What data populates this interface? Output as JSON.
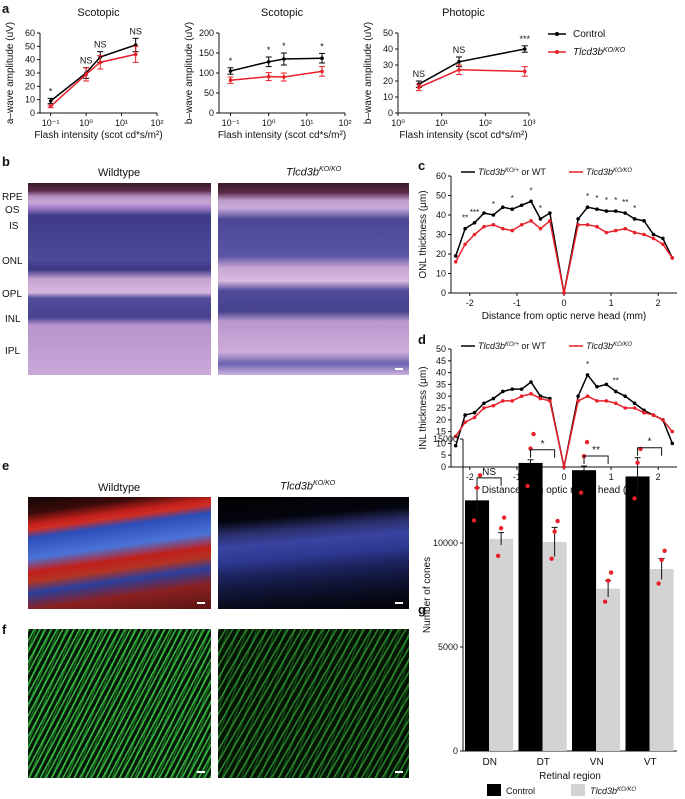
{
  "panels": {
    "a": "a",
    "b": "b",
    "c": "c",
    "d": "d",
    "e": "e",
    "f": "f",
    "g": "g"
  },
  "legend_a": {
    "control": "Control",
    "ko_main": "Tlcd3b",
    "ko_sup": "KO/KO"
  },
  "micro_labels": {
    "wildtype_b": "Wildtype",
    "ko_b_main": "Tlcd3b",
    "ko_b_sup": "KO/KO",
    "wildtype_e": "Wildtype",
    "ko_e_main": "Tlcd3b",
    "ko_e_sup": "KO/KO",
    "layers": [
      "RPE",
      "OS",
      "IS",
      "ONL",
      "OPL",
      "INL",
      "IPL"
    ]
  },
  "colors": {
    "control": "#000000",
    "ko": "#e8202a",
    "ko_bar": "#d3d3d3",
    "dot": "#e8202a"
  },
  "chart_data": [
    {
      "id": "a1",
      "type": "line",
      "title": "Scotopic",
      "xlabel": "Flash intensity (scot cd*s/m²)",
      "ylabel": "a–wave amplitude (uV)",
      "xscale": "log",
      "xlim": [
        0.05,
        100
      ],
      "ylim": [
        0,
        60
      ],
      "yticks": [
        0,
        10,
        20,
        30,
        40,
        50,
        60
      ],
      "xticks": [
        "10⁻¹",
        "10⁰",
        "10¹",
        "10²"
      ],
      "x": [
        0.1,
        1,
        2.5,
        25
      ],
      "series": [
        {
          "name": "Control",
          "values": [
            9,
            30,
            42,
            51
          ],
          "err": [
            2,
            4,
            4,
            5
          ]
        },
        {
          "name": "Tlcd3bKO/KO",
          "values": [
            5,
            29,
            38,
            44
          ],
          "err": [
            1,
            5,
            5,
            6
          ]
        }
      ],
      "annotations": [
        "*",
        "NS",
        "NS",
        "NS"
      ]
    },
    {
      "id": "a2",
      "type": "line",
      "title": "Scotopic",
      "xlabel": "Flash intensity (scot cd*s/m²)",
      "ylabel": "b–wave amplitude (uV)",
      "xscale": "log",
      "xlim": [
        0.05,
        100
      ],
      "ylim": [
        0,
        200
      ],
      "yticks": [
        0,
        50,
        100,
        150,
        200
      ],
      "xticks": [
        "10⁻¹",
        "10⁰",
        "10¹",
        "10²"
      ],
      "x": [
        0.1,
        1,
        2.5,
        25
      ],
      "series": [
        {
          "name": "Control",
          "values": [
            105,
            128,
            135,
            137
          ],
          "err": [
            8,
            12,
            15,
            12
          ]
        },
        {
          "name": "Tlcd3bKO/KO",
          "values": [
            82,
            91,
            90,
            104
          ],
          "err": [
            8,
            10,
            10,
            12
          ]
        }
      ],
      "annotations": [
        "*",
        "*",
        "*",
        "*"
      ]
    },
    {
      "id": "a3",
      "type": "line",
      "title": "Photopic",
      "xlabel": "Flash intensity (scot cd*s/m²)",
      "ylabel": "b–wave amplitude (uV)",
      "xscale": "log",
      "xlim": [
        1,
        1000
      ],
      "ylim": [
        0,
        50
      ],
      "yticks": [
        0,
        10,
        20,
        30,
        40,
        50
      ],
      "xticks": [
        "10⁰",
        "10¹",
        "10²",
        "10³"
      ],
      "x": [
        3,
        25,
        800
      ],
      "series": [
        {
          "name": "Control",
          "values": [
            18,
            32,
            40
          ],
          "err": [
            2,
            3,
            2
          ]
        },
        {
          "name": "Tlcd3bKO/KO",
          "values": [
            16,
            27,
            26
          ],
          "err": [
            2,
            3,
            3
          ]
        }
      ],
      "annotations": [
        "NS",
        "NS",
        "***"
      ]
    },
    {
      "id": "c",
      "type": "line",
      "xlabel": "Distance from optic nerve head (mm)",
      "ylabel": "ONL thickness (μm)",
      "xlim": [
        -2.4,
        2.4
      ],
      "ylim": [
        0,
        60
      ],
      "yticks": [
        0,
        10,
        20,
        30,
        40,
        50,
        60
      ],
      "xticks": [
        -2,
        -1,
        0,
        1,
        2
      ],
      "x": [
        -2.3,
        -2.1,
        -1.9,
        -1.7,
        -1.5,
        -1.3,
        -1.1,
        -0.9,
        -0.7,
        -0.5,
        -0.3,
        0,
        0.3,
        0.5,
        0.7,
        0.9,
        1.1,
        1.3,
        1.5,
        1.7,
        1.9,
        2.1,
        2.3
      ],
      "series": [
        {
          "name": "Tlcd3bKO/+ or WT",
          "values": [
            19,
            33,
            36,
            41,
            40,
            44,
            43,
            45,
            47,
            38,
            41,
            0,
            38,
            44,
            43,
            42,
            42,
            41,
            38,
            37,
            30,
            28,
            18
          ]
        },
        {
          "name": "Tlcd3bKO/KO",
          "values": [
            16,
            25,
            30,
            34,
            35,
            33,
            32,
            35,
            37,
            33,
            37,
            0,
            35,
            35,
            34,
            31,
            32,
            33,
            31,
            30,
            28,
            25,
            18
          ]
        }
      ],
      "legend": [
        "Tlcd3b",
        "KO/+",
        " or WT",
        "Tlcd3b",
        "KO/KO"
      ],
      "annotations": [
        "**",
        "***",
        "*",
        "*",
        "*",
        "*",
        "*",
        "*",
        "*",
        "*",
        "**",
        "*"
      ]
    },
    {
      "id": "d",
      "type": "line",
      "xlabel": "Distance from optic nerve head (mm)",
      "ylabel": "INL thickness (μm)",
      "xlim": [
        -2.4,
        2.4
      ],
      "ylim": [
        0,
        50
      ],
      "yticks": [
        0,
        5,
        10,
        15,
        20,
        25,
        30,
        35,
        40,
        45,
        50
      ],
      "xticks": [
        -2,
        -1,
        0,
        1,
        2
      ],
      "x": [
        -2.3,
        -2.1,
        -1.9,
        -1.7,
        -1.5,
        -1.3,
        -1.1,
        -0.9,
        -0.7,
        -0.5,
        -0.3,
        0,
        0.3,
        0.5,
        0.7,
        0.9,
        1.1,
        1.3,
        1.5,
        1.7,
        1.9,
        2.1,
        2.3
      ],
      "series": [
        {
          "name": "Tlcd3bKO/+ or WT",
          "values": [
            9,
            22,
            23,
            27,
            29,
            32,
            33,
            33,
            36,
            30,
            29,
            0,
            30,
            39,
            34,
            35,
            32,
            30,
            27,
            24,
            22,
            20,
            10
          ]
        },
        {
          "name": "Tlcd3bKO/KO",
          "values": [
            13,
            19,
            21,
            25,
            26,
            28,
            28,
            30,
            31,
            29,
            28,
            0,
            28,
            30,
            28,
            28,
            27,
            25,
            25,
            23,
            22,
            20,
            15
          ]
        }
      ],
      "legend": [
        "Tlcd3b",
        "KO/+",
        " or WT",
        "Tlcd3b",
        "KO/KO"
      ],
      "annotations": [
        "*",
        "**"
      ]
    },
    {
      "id": "g",
      "type": "bar",
      "xlabel": "Retinal region",
      "ylabel": "Number of cones",
      "ylim": [
        0,
        15000
      ],
      "yticks": [
        0,
        5000,
        10000,
        15000
      ],
      "categories": [
        "DN",
        "DT",
        "VN",
        "VT"
      ],
      "series": [
        {
          "name": "Control",
          "values": [
            12050,
            13850,
            13500,
            13200
          ],
          "err": [
            600,
            150,
            200,
            900
          ]
        },
        {
          "name": "Tlcd3bKO/KO",
          "values": [
            10200,
            10050,
            7800,
            8750
          ],
          "err": [
            300,
            700,
            400,
            500
          ]
        }
      ],
      "annotations": [
        "NS",
        "*",
        "**",
        "*"
      ],
      "legend": [
        "Control",
        "Tlcd3b",
        "KO/KO"
      ]
    }
  ]
}
